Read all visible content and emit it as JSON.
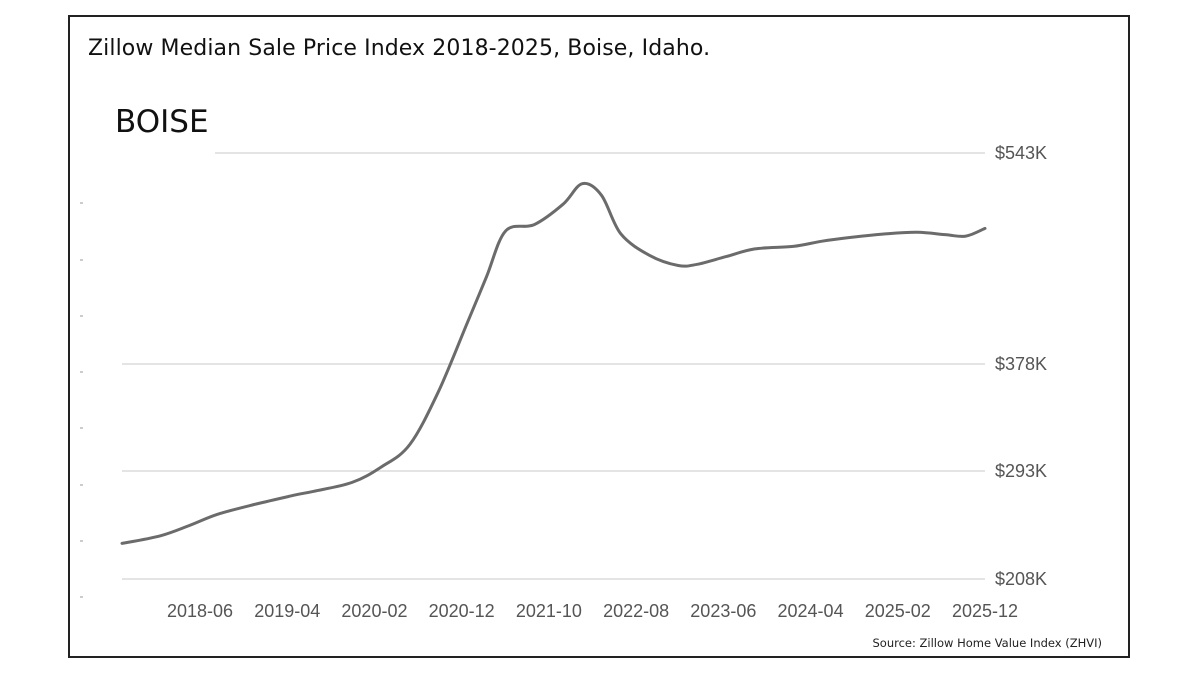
{
  "title": "Zillow Median Sale Price Index 2018-2025, Boise, Idaho.",
  "city": "BOISE",
  "source": "Source: Zillow Home Value Index (ZHVI)",
  "colors": {
    "line": "#6b6b6b",
    "grid": "#d4d4d4",
    "frame": "#222222",
    "text": "#555555"
  },
  "chart_data": {
    "type": "line",
    "title": "BOISE",
    "xlabel": "",
    "ylabel": "",
    "grid": true,
    "legend": "none",
    "x_ticks": [
      "2018-06",
      "2019-04",
      "2020-02",
      "2020-12",
      "2021-10",
      "2022-08",
      "2023-06",
      "2024-04",
      "2025-02",
      "2025-12"
    ],
    "y_ticks": [
      {
        "value": 543,
        "label": "$543K"
      },
      {
        "value": 378,
        "label": "$378K"
      },
      {
        "value": 293,
        "label": "$293K"
      },
      {
        "value": 208,
        "label": "$208K"
      }
    ],
    "y_scale_note": "axis labels are not evenly spaced in value",
    "series": [
      {
        "points": [
          [
            "2018-06",
            236
          ],
          [
            "2018-10",
            242
          ],
          [
            "2019-01",
            250
          ],
          [
            "2019-04",
            259
          ],
          [
            "2019-08",
            267
          ],
          [
            "2019-12",
            274
          ],
          [
            "2020-02",
            277
          ],
          [
            "2020-06",
            284
          ],
          [
            "2020-09",
            296
          ],
          [
            "2020-12",
            314
          ],
          [
            "2021-03",
            356
          ],
          [
            "2021-06",
            410
          ],
          [
            "2021-08",
            446
          ],
          [
            "2021-10",
            482
          ],
          [
            "2022-01",
            487
          ],
          [
            "2022-04",
            503
          ],
          [
            "2022-06",
            519
          ],
          [
            "2022-08",
            510
          ],
          [
            "2022-10",
            480
          ],
          [
            "2023-01",
            463
          ],
          [
            "2023-04",
            455
          ],
          [
            "2023-06",
            456
          ],
          [
            "2023-09",
            462
          ],
          [
            "2023-12",
            468
          ],
          [
            "2024-04",
            470
          ],
          [
            "2024-07",
            474
          ],
          [
            "2024-10",
            477
          ],
          [
            "2025-02",
            480
          ],
          [
            "2025-05",
            481
          ],
          [
            "2025-08",
            479
          ],
          [
            "2025-10",
            478
          ],
          [
            "2025-12",
            484
          ]
        ]
      }
    ]
  }
}
